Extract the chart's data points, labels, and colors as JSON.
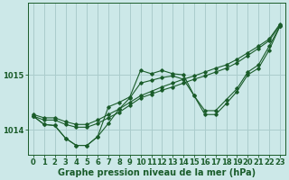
{
  "bg_color": "#cce8e8",
  "grid_color": "#aacccc",
  "line_color": "#1a5c2a",
  "xlabel": "Graphe pression niveau de la mer (hPa)",
  "xlabel_fontsize": 7,
  "tick_fontsize": 6,
  "xlim": [
    -0.5,
    23.5
  ],
  "ylim": [
    1013.55,
    1016.3
  ],
  "yticks": [
    1014,
    1015
  ],
  "xticks": [
    0,
    1,
    2,
    3,
    4,
    5,
    6,
    7,
    8,
    9,
    10,
    11,
    12,
    13,
    14,
    15,
    16,
    17,
    18,
    19,
    20,
    21,
    22,
    23
  ],
  "s_wavy": [
    1014.25,
    1014.1,
    1014.08,
    1013.85,
    1013.72,
    1013.72,
    1013.88,
    1014.42,
    1014.5,
    1014.6,
    1015.08,
    1015.02,
    1015.08,
    1015.02,
    1015.0,
    1014.62,
    1014.28,
    1014.28,
    1014.48,
    1014.7,
    1015.0,
    1015.12,
    1015.45,
    1015.88
  ],
  "s_linear1": [
    1014.25,
    1014.18,
    1014.18,
    1014.1,
    1014.05,
    1014.05,
    1014.12,
    1014.22,
    1014.32,
    1014.45,
    1014.58,
    1014.65,
    1014.72,
    1014.78,
    1014.85,
    1014.92,
    1014.98,
    1015.05,
    1015.12,
    1015.22,
    1015.35,
    1015.48,
    1015.62,
    1015.9
  ],
  "s_linear2": [
    1014.28,
    1014.22,
    1014.22,
    1014.15,
    1014.1,
    1014.1,
    1014.18,
    1014.28,
    1014.38,
    1014.5,
    1014.62,
    1014.7,
    1014.78,
    1014.85,
    1014.92,
    1014.98,
    1015.05,
    1015.12,
    1015.18,
    1015.28,
    1015.4,
    1015.52,
    1015.65,
    1015.92
  ],
  "s_mid": [
    1014.25,
    1014.1,
    1014.08,
    1013.85,
    1013.72,
    1013.72,
    1013.88,
    1014.12,
    1014.38,
    1014.58,
    1014.85,
    1014.9,
    1014.95,
    1014.98,
    1014.92,
    1014.62,
    1014.35,
    1014.35,
    1014.55,
    1014.75,
    1015.05,
    1015.18,
    1015.52,
    1015.88
  ]
}
